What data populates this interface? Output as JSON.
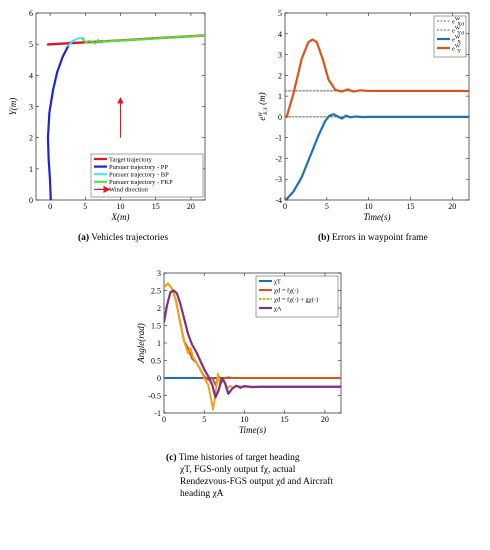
{
  "chart_data": [
    {
      "id": "a",
      "type": "line",
      "caption_label": "(a)",
      "caption_text": "Vehicles trajectories",
      "xlabel": "X(m)",
      "ylabel": "Y(m)",
      "xlim": [
        -2,
        22
      ],
      "ylim": [
        0,
        6
      ],
      "xticks": [
        0,
        5,
        10,
        15,
        20
      ],
      "yticks": [
        0,
        1,
        2,
        3,
        4,
        5,
        6
      ],
      "grid": false,
      "legend_position": "bottom-right",
      "series": [
        {
          "name": "Target trajectory",
          "color": "#e8141b",
          "width": 2.4,
          "x": [
            -0.3,
            5,
            10,
            15,
            22
          ],
          "y": [
            4.99,
            5.06,
            5.12,
            5.19,
            5.28
          ]
        },
        {
          "name": "Pursuer trajectory - PP",
          "color": "#1f23d6",
          "width": 2.2,
          "x": [
            0.1,
            0.0,
            -0.2,
            -0.3,
            -0.1,
            0.4,
            1.0,
            1.8,
            2.6,
            2.9,
            3.1
          ],
          "y": [
            0.0,
            0.6,
            1.3,
            2.0,
            2.8,
            3.5,
            4.1,
            4.6,
            4.95,
            5.05,
            5.07
          ]
        },
        {
          "name": "Pursuer trajectory - BP",
          "color": "#3fe6ff",
          "width": 2.0,
          "x": [
            2.6,
            3.2,
            3.8,
            4.3,
            4.8
          ],
          "y": [
            4.95,
            5.1,
            5.17,
            5.2,
            5.18
          ]
        },
        {
          "name": "Pursuer trajectory - FKP",
          "color": "#4fe03a",
          "width": 2.0,
          "x": [
            4.6,
            5.1,
            5.5,
            6.0,
            6.4,
            6.8,
            7.2,
            7.6,
            8.1,
            9,
            11,
            14,
            18,
            22
          ],
          "y": [
            5.17,
            5.05,
            5.1,
            5.08,
            5.02,
            5.13,
            5.05,
            5.1,
            5.09,
            5.1,
            5.13,
            5.17,
            5.23,
            5.28
          ]
        }
      ],
      "annotations": [
        {
          "type": "arrow",
          "name": "Wind direction",
          "color": "#e8141b",
          "x": 10,
          "y_from": 2.0,
          "y_to": 3.2
        }
      ]
    },
    {
      "id": "b",
      "type": "line",
      "caption_label": "(b)",
      "caption_text": "Errors in waypoint frame",
      "xlabel": "Time(s)",
      "ylabel": "e^{W}_{X,Y} (m)",
      "xlim": [
        0,
        22
      ],
      "ylim": [
        -4,
        5
      ],
      "xticks": [
        0,
        5,
        10,
        15,
        20
      ],
      "yticks": [
        -4,
        -3,
        -2,
        -1,
        0,
        1,
        2,
        3,
        4,
        5
      ],
      "grid": false,
      "legend_position": "top-right",
      "series": [
        {
          "name": "e^{W}_{X_d}",
          "color": "#666666",
          "dash": "2,1.5",
          "width": 1.0,
          "x": [
            0,
            22
          ],
          "y": [
            0,
            0
          ]
        },
        {
          "name": "e^{W}_{Y_d}",
          "color": "#666666",
          "dash": "2,1.5",
          "width": 1.0,
          "x": [
            0,
            22
          ],
          "y": [
            1.25,
            1.25
          ]
        },
        {
          "name": "e^{W}_{X}",
          "color": "#1f6fb4",
          "width": 2.2,
          "x": [
            0.1,
            1.0,
            2.0,
            3.0,
            4.0,
            4.8,
            5.3,
            5.8,
            6.3,
            6.8,
            7.3,
            7.8,
            8.5,
            9.3,
            10,
            12,
            22
          ],
          "y": [
            -4.0,
            -3.6,
            -2.9,
            -1.9,
            -0.9,
            -0.2,
            0.05,
            0.13,
            0.02,
            -0.08,
            0.06,
            -0.02,
            0.02,
            -0.01,
            0.0,
            0.0,
            0.0
          ]
        },
        {
          "name": "e^{W}_{Y}",
          "color": "#d9541a",
          "width": 2.2,
          "x": [
            0.2,
            1.0,
            2.0,
            2.8,
            3.3,
            3.8,
            4.5,
            5.2,
            6.0,
            6.8,
            7.5,
            8.2,
            9,
            10,
            22
          ],
          "y": [
            0.0,
            1.1,
            2.8,
            3.6,
            3.72,
            3.6,
            2.8,
            1.8,
            1.3,
            1.22,
            1.32,
            1.22,
            1.28,
            1.25,
            1.25
          ]
        }
      ]
    },
    {
      "id": "c",
      "type": "line",
      "caption_label": "(c)",
      "caption_text": "Time histories of target heading χT, FGS-only output fχ, actual Rendezvous-FGS output χd and Aircraft heading χA",
      "caption_lines": [
        "Time histories of target heading",
        "χT,  FGS-only output  fχ,  actual",
        "Rendezvous-FGS output χd and Aircraft",
        "heading χA"
      ],
      "xlabel": "Time(s)",
      "ylabel": "Angle(rad)",
      "xlim": [
        0,
        22
      ],
      "ylim": [
        -1,
        3
      ],
      "xticks": [
        0,
        5,
        10,
        15,
        20
      ],
      "yticks": [
        -1,
        -0.5,
        0,
        0.5,
        1,
        1.5,
        2,
        2.5,
        3
      ],
      "grid": false,
      "legend_position": "top-right",
      "series": [
        {
          "name": "χT",
          "color": "#1f6fb4",
          "width": 2.0,
          "x": [
            0,
            22
          ],
          "y": [
            0,
            0
          ]
        },
        {
          "name": "χd = fχ(·)",
          "color": "#d9541a",
          "width": 2.0,
          "x": [
            0,
            0.5,
            1.0,
            1.5,
            2.0,
            2.5,
            3.0,
            3.5,
            4.0,
            4.5,
            5.0,
            5.5,
            6.0,
            6.4,
            6.8,
            7.2,
            7.6,
            8.0,
            8.5,
            9.0,
            10,
            22
          ],
          "y": [
            2.6,
            2.7,
            2.55,
            2.2,
            1.6,
            1.05,
            0.85,
            0.55,
            0.45,
            0.25,
            0.05,
            -0.05,
            0.0,
            -0.2,
            0.05,
            -0.05,
            0.0,
            0.02,
            0.0,
            0.0,
            0.0,
            0.0
          ]
        },
        {
          "name": "χd = fχ(·) + gχ(·)",
          "color": "#f0a30a",
          "dash": "2.5,1.5",
          "width": 2.0,
          "x": [
            0,
            0.5,
            1.0,
            1.5,
            2.0,
            2.5,
            3.0,
            3.3,
            3.6,
            4.0,
            4.5,
            5.0,
            5.5,
            5.8,
            6.1,
            6.4,
            6.7,
            7.0,
            7.4,
            7.8,
            8.2,
            8.6,
            9,
            10,
            12,
            22
          ],
          "y": [
            2.6,
            2.7,
            2.55,
            2.2,
            1.6,
            1.05,
            0.7,
            0.85,
            0.6,
            0.45,
            0.25,
            0.0,
            -0.2,
            -0.55,
            -0.9,
            -0.45,
            0.12,
            -0.2,
            -0.05,
            -0.32,
            -0.22,
            -0.28,
            -0.23,
            -0.25,
            -0.25,
            -0.25
          ]
        },
        {
          "name": "χA",
          "color": "#7e2f8e",
          "width": 2.2,
          "x": [
            0,
            0.4,
            0.8,
            1.2,
            1.6,
            2.0,
            2.5,
            3.0,
            3.5,
            4.0,
            4.5,
            5.0,
            5.5,
            6.0,
            6.4,
            6.8,
            7.2,
            7.6,
            8.0,
            8.5,
            9.0,
            9.5,
            10,
            11,
            12,
            22
          ],
          "y": [
            1.6,
            2.1,
            2.45,
            2.5,
            2.42,
            2.15,
            1.7,
            1.25,
            0.95,
            0.75,
            0.5,
            0.25,
            0.05,
            -0.2,
            -0.55,
            -0.35,
            0.0,
            -0.15,
            -0.45,
            -0.3,
            -0.22,
            -0.28,
            -0.23,
            -0.26,
            -0.25,
            -0.25
          ]
        }
      ]
    }
  ]
}
